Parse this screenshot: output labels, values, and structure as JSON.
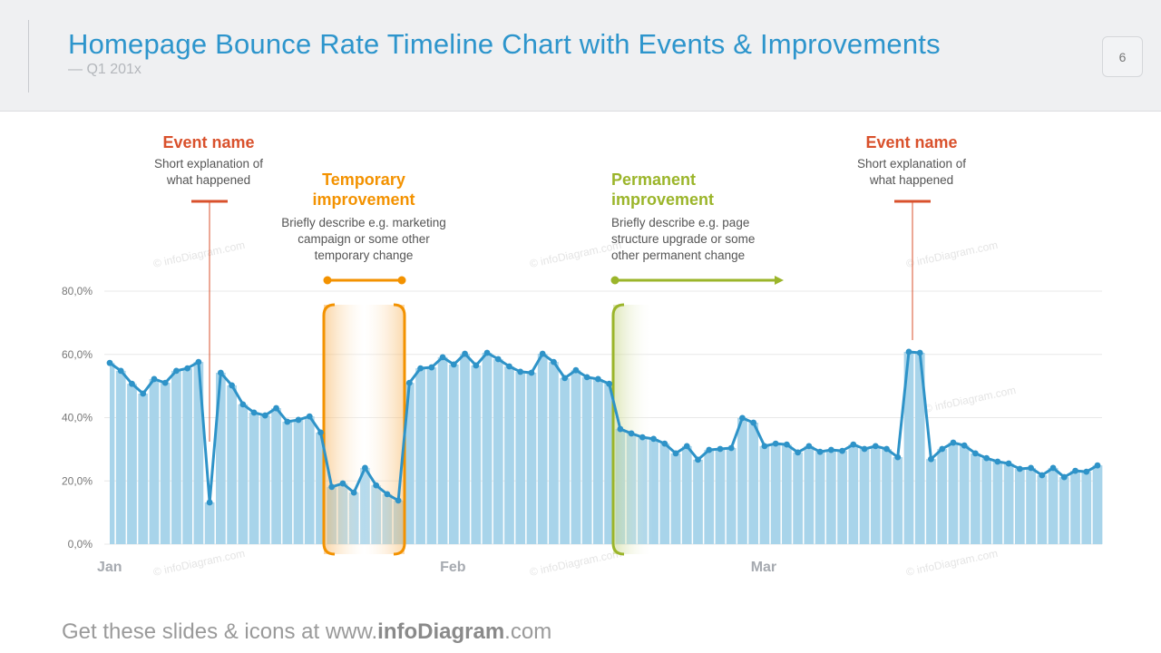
{
  "header": {
    "title": "Homepage Bounce Rate Timeline Chart with Events & Improvements",
    "subtitle": "— Q1 201x",
    "page_number": "6"
  },
  "annotations": {
    "event1": {
      "title": "Event name",
      "desc1": "Short  explanation of",
      "desc2": "what happened"
    },
    "temporary": {
      "title1": "Temporary",
      "title2": "improvement",
      "desc1": "Briefly describe e.g. marketing",
      "desc2": "campaign or some other",
      "desc3": "temporary  change"
    },
    "permanent": {
      "title1": "Permanent",
      "title2": "improvement",
      "desc1": "Briefly describe e.g. page",
      "desc2": "structure upgrade or some",
      "desc3": "other permanent  change"
    },
    "event2": {
      "title": "Event name",
      "desc1": "Short  explanation of",
      "desc2": "what happened"
    }
  },
  "watermark": "© infoDiagram.com",
  "footer": {
    "prefix": "Get these slides & icons at www.",
    "brand": "infoDiagram",
    "suffix": ".com"
  },
  "colors": {
    "bars": "#a8d4ea",
    "line": "#2e93c8",
    "event": "#d9512c",
    "temporary": "#f39200",
    "permanent": "#9bb52a",
    "grid": "#e8e8e8"
  },
  "chart_data": {
    "type": "bar+line",
    "ylim": [
      0,
      80
    ],
    "y_ticks": [
      "0,0%",
      "20,0%",
      "40,0%",
      "60,0%",
      "80,0%"
    ],
    "y_tick_values": [
      0,
      20,
      40,
      60,
      80
    ],
    "x_labels": [
      {
        "label": "Jan",
        "day": 1
      },
      {
        "label": "Feb",
        "day": 32
      },
      {
        "label": "Mar",
        "day": 60
      }
    ],
    "grid": true,
    "events": [
      {
        "day": 10
      },
      {
        "day": 73
      }
    ],
    "temporary_range": [
      21,
      27
    ],
    "permanent_start": 47,
    "values": [
      57.3,
      54.8,
      50.7,
      47.6,
      52.2,
      51.0,
      54.8,
      55.6,
      57.6,
      13.2,
      54.2,
      50.2,
      44.2,
      41.6,
      40.7,
      43.0,
      38.7,
      39.3,
      40.4,
      35.3,
      18.1,
      19.2,
      16.3,
      24.1,
      18.6,
      15.8,
      13.8,
      51.0,
      55.6,
      55.9,
      59.1,
      56.8,
      60.2,
      56.5,
      60.5,
      58.5,
      56.2,
      54.5,
      54.2,
      60.2,
      57.6,
      52.5,
      55.0,
      52.8,
      52.2,
      50.7,
      36.4,
      35.0,
      33.8,
      33.3,
      31.8,
      28.7,
      31.0,
      26.7,
      29.8,
      30.1,
      30.4,
      39.9,
      38.4,
      31.0,
      31.8,
      31.5,
      29.0,
      31.0,
      29.2,
      29.8,
      29.5,
      31.5,
      30.1,
      31.0,
      30.1,
      27.5,
      60.8,
      60.5,
      26.9,
      30.1,
      32.1,
      31.2,
      28.7,
      27.2,
      26.1,
      25.5,
      23.8,
      24.1,
      21.8,
      24.1,
      21.2,
      23.2,
      22.9,
      24.9
    ]
  }
}
